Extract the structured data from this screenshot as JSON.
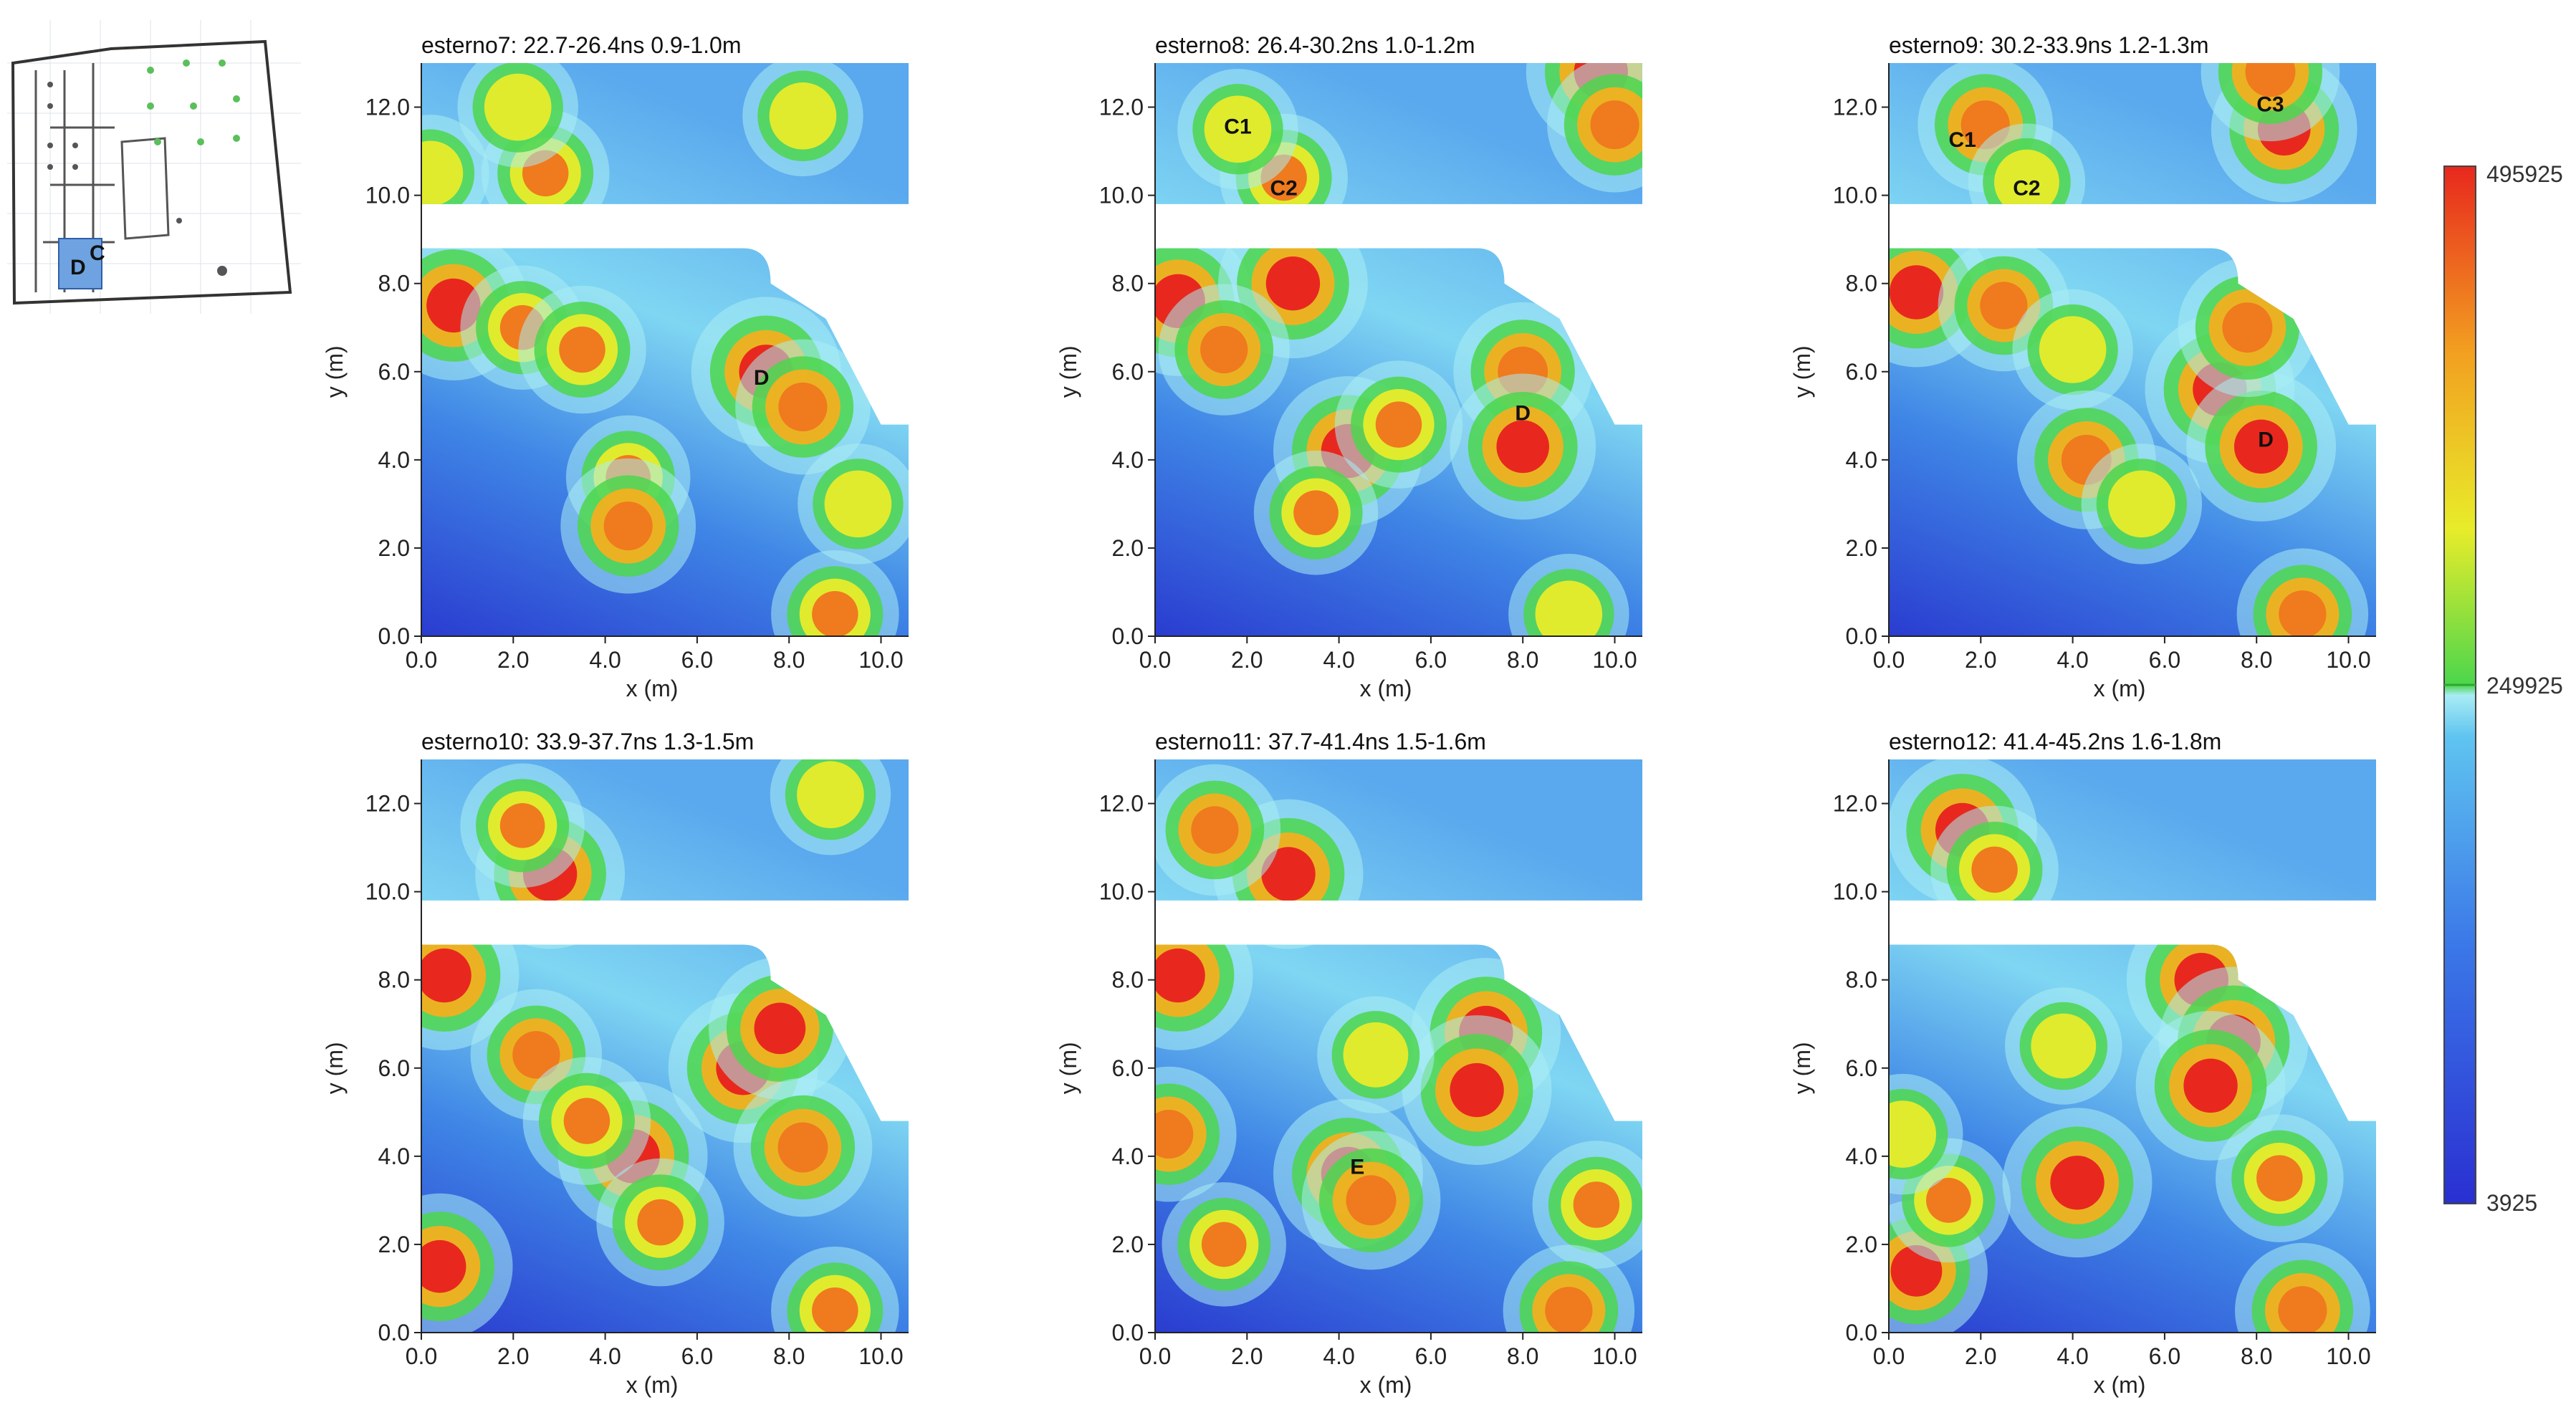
{
  "colorbar": {
    "max_label": "495925",
    "mid_label": "249925",
    "min_label": "3925",
    "colors": [
      "#2a2fd1",
      "#3b78e8",
      "#5fc4f0",
      "#a9ecf4",
      "#4cd64c",
      "#e8ec2a",
      "#f2a020",
      "#e8281e"
    ]
  },
  "site_map": {
    "labels": [
      "D",
      "C"
    ],
    "icon": "site-plan-thumbnail"
  },
  "chart_data": [
    {
      "type": "heatmap",
      "title": "esterno7:  22.7-26.4ns  0.9-1.0m",
      "xlabel": "x (m)",
      "ylabel": "y (m)",
      "xlim": [
        0,
        10.6
      ],
      "ylim": [
        0,
        13
      ],
      "xticks": [
        "0.0",
        "2.0",
        "4.0",
        "6.0",
        "8.0",
        "10.0"
      ],
      "yticks": [
        "0.0",
        "2.0",
        "4.0",
        "6.0",
        "8.0",
        "10.0",
        "12.0"
      ],
      "annotations": [
        {
          "text": "D",
          "x": 7.4,
          "y": 5.7
        }
      ],
      "hotspots": [
        {
          "x": 0.7,
          "y": 7.5,
          "v": 1.0
        },
        {
          "x": 2.2,
          "y": 7.0,
          "v": 0.65
        },
        {
          "x": 3.5,
          "y": 6.5,
          "v": 0.7
        },
        {
          "x": 7.5,
          "y": 6.0,
          "v": 1.0
        },
        {
          "x": 8.3,
          "y": 5.2,
          "v": 0.8
        },
        {
          "x": 4.5,
          "y": 3.6,
          "v": 0.65
        },
        {
          "x": 4.5,
          "y": 2.5,
          "v": 0.8
        },
        {
          "x": 9.5,
          "y": 3.0,
          "v": 0.6
        },
        {
          "x": 9.0,
          "y": 0.5,
          "v": 0.7
        },
        {
          "x": 2.7,
          "y": 10.5,
          "v": 0.7
        },
        {
          "x": 2.1,
          "y": 12.0,
          "v": 0.6
        },
        {
          "x": 8.3,
          "y": 11.8,
          "v": 0.6
        },
        {
          "x": 0.2,
          "y": 10.5,
          "v": 0.55
        }
      ]
    },
    {
      "type": "heatmap",
      "title": "esterno8:  26.4-30.2ns  1.0-1.2m",
      "xlabel": "x (m)",
      "ylabel": "y (m)",
      "xlim": [
        0,
        10.6
      ],
      "ylim": [
        0,
        13
      ],
      "xticks": [
        "0.0",
        "2.0",
        "4.0",
        "6.0",
        "8.0",
        "10.0"
      ],
      "yticks": [
        "0.0",
        "2.0",
        "4.0",
        "6.0",
        "8.0",
        "10.0",
        "12.0"
      ],
      "annotations": [
        {
          "text": "C1",
          "x": 1.8,
          "y": 11.4
        },
        {
          "text": "C2",
          "x": 2.8,
          "y": 10.0
        },
        {
          "text": "D",
          "x": 8.0,
          "y": 4.9
        }
      ],
      "hotspots": [
        {
          "x": 0.5,
          "y": 7.6,
          "v": 1.0
        },
        {
          "x": 3.0,
          "y": 8.0,
          "v": 1.0
        },
        {
          "x": 1.5,
          "y": 6.5,
          "v": 0.75
        },
        {
          "x": 4.2,
          "y": 4.2,
          "v": 1.0
        },
        {
          "x": 5.3,
          "y": 4.8,
          "v": 0.7
        },
        {
          "x": 8.0,
          "y": 6.0,
          "v": 0.85
        },
        {
          "x": 8.0,
          "y": 4.3,
          "v": 0.95
        },
        {
          "x": 3.5,
          "y": 2.8,
          "v": 0.65
        },
        {
          "x": 9.0,
          "y": 0.5,
          "v": 0.6
        },
        {
          "x": 9.7,
          "y": 12.8,
          "v": 1.0
        },
        {
          "x": 2.8,
          "y": 10.4,
          "v": 0.7
        },
        {
          "x": 1.8,
          "y": 11.5,
          "v": 0.6
        },
        {
          "x": 10.0,
          "y": 11.6,
          "v": 0.8
        }
      ]
    },
    {
      "type": "heatmap",
      "title": "esterno9:  30.2-33.9ns  1.2-1.3m",
      "xlabel": "x (m)",
      "ylabel": "y (m)",
      "xlim": [
        0,
        10.6
      ],
      "ylim": [
        0,
        13
      ],
      "xticks": [
        "0.0",
        "2.0",
        "4.0",
        "6.0",
        "8.0",
        "10.0"
      ],
      "yticks": [
        "0.0",
        "2.0",
        "4.0",
        "6.0",
        "8.0",
        "10.0",
        "12.0"
      ],
      "annotations": [
        {
          "text": "C1",
          "x": 1.6,
          "y": 11.1
        },
        {
          "text": "C2",
          "x": 3.0,
          "y": 10.0
        },
        {
          "text": "C3",
          "x": 8.3,
          "y": 11.9
        },
        {
          "text": "D",
          "x": 8.2,
          "y": 4.3
        }
      ],
      "hotspots": [
        {
          "x": 0.6,
          "y": 7.8,
          "v": 1.0
        },
        {
          "x": 2.5,
          "y": 7.5,
          "v": 0.75
        },
        {
          "x": 4.0,
          "y": 6.5,
          "v": 0.6
        },
        {
          "x": 7.2,
          "y": 5.6,
          "v": 1.0
        },
        {
          "x": 8.1,
          "y": 4.3,
          "v": 1.0
        },
        {
          "x": 7.8,
          "y": 7.0,
          "v": 0.85
        },
        {
          "x": 4.3,
          "y": 4.0,
          "v": 0.85
        },
        {
          "x": 5.5,
          "y": 3.0,
          "v": 0.6
        },
        {
          "x": 9.0,
          "y": 0.5,
          "v": 0.75
        },
        {
          "x": 2.1,
          "y": 11.6,
          "v": 0.8
        },
        {
          "x": 3.0,
          "y": 10.3,
          "v": 0.55
        },
        {
          "x": 8.6,
          "y": 11.5,
          "v": 0.95
        },
        {
          "x": 8.3,
          "y": 12.8,
          "v": 0.85
        }
      ]
    },
    {
      "type": "heatmap",
      "title": "esterno10:  33.9-37.7ns  1.3-1.5m",
      "xlabel": "x (m)",
      "ylabel": "y (m)",
      "xlim": [
        0,
        10.6
      ],
      "ylim": [
        0,
        13
      ],
      "xticks": [
        "0.0",
        "2.0",
        "4.0",
        "6.0",
        "8.0",
        "10.0"
      ],
      "yticks": [
        "0.0",
        "2.0",
        "4.0",
        "6.0",
        "8.0",
        "10.0",
        "12.0"
      ],
      "annotations": [],
      "hotspots": [
        {
          "x": 0.5,
          "y": 8.1,
          "v": 1.0
        },
        {
          "x": 2.5,
          "y": 6.3,
          "v": 0.75
        },
        {
          "x": 4.6,
          "y": 4.0,
          "v": 1.0
        },
        {
          "x": 3.6,
          "y": 4.8,
          "v": 0.7
        },
        {
          "x": 7.0,
          "y": 6.0,
          "v": 1.0
        },
        {
          "x": 7.8,
          "y": 6.9,
          "v": 0.9
        },
        {
          "x": 8.3,
          "y": 4.2,
          "v": 0.85
        },
        {
          "x": 0.4,
          "y": 1.5,
          "v": 0.95
        },
        {
          "x": 5.2,
          "y": 2.5,
          "v": 0.7
        },
        {
          "x": 9.0,
          "y": 0.5,
          "v": 0.7
        },
        {
          "x": 2.8,
          "y": 10.4,
          "v": 1.0
        },
        {
          "x": 2.2,
          "y": 11.5,
          "v": 0.65
        },
        {
          "x": 8.9,
          "y": 12.2,
          "v": 0.6
        }
      ]
    },
    {
      "type": "heatmap",
      "title": "esterno11:  37.7-41.4ns  1.5-1.6m",
      "xlabel": "x (m)",
      "ylabel": "y (m)",
      "xlim": [
        0,
        10.6
      ],
      "ylim": [
        0,
        13
      ],
      "xticks": [
        "0.0",
        "2.0",
        "4.0",
        "6.0",
        "8.0",
        "10.0"
      ],
      "yticks": [
        "0.0",
        "2.0",
        "4.0",
        "6.0",
        "8.0",
        "10.0",
        "12.0"
      ],
      "annotations": [
        {
          "text": "E",
          "x": 4.4,
          "y": 3.6
        }
      ],
      "hotspots": [
        {
          "x": 0.5,
          "y": 8.1,
          "v": 1.0
        },
        {
          "x": 0.3,
          "y": 4.5,
          "v": 0.8
        },
        {
          "x": 4.2,
          "y": 3.6,
          "v": 1.0
        },
        {
          "x": 4.7,
          "y": 3.0,
          "v": 0.85
        },
        {
          "x": 7.2,
          "y": 6.8,
          "v": 1.0
        },
        {
          "x": 7.0,
          "y": 5.5,
          "v": 1.0
        },
        {
          "x": 9.6,
          "y": 2.9,
          "v": 0.7
        },
        {
          "x": 1.5,
          "y": 2.0,
          "v": 0.65
        },
        {
          "x": 9.0,
          "y": 0.5,
          "v": 0.75
        },
        {
          "x": 2.9,
          "y": 10.4,
          "v": 1.0
        },
        {
          "x": 1.3,
          "y": 11.4,
          "v": 0.75
        },
        {
          "x": 4.8,
          "y": 6.3,
          "v": 0.55
        }
      ]
    },
    {
      "type": "heatmap",
      "title": "esterno12:  41.4-45.2ns  1.6-1.8m",
      "xlabel": "x (m)",
      "ylabel": "y (m)",
      "xlim": [
        0,
        10.6
      ],
      "ylim": [
        0,
        13
      ],
      "xticks": [
        "0.0",
        "2.0",
        "4.0",
        "6.0",
        "8.0",
        "10.0"
      ],
      "yticks": [
        "0.0",
        "2.0",
        "4.0",
        "6.0",
        "8.0",
        "10.0",
        "12.0"
      ],
      "annotations": [],
      "hotspots": [
        {
          "x": 6.8,
          "y": 8.0,
          "v": 1.0
        },
        {
          "x": 7.5,
          "y": 6.6,
          "v": 1.0
        },
        {
          "x": 7.0,
          "y": 5.6,
          "v": 1.0
        },
        {
          "x": 4.1,
          "y": 3.4,
          "v": 1.0
        },
        {
          "x": 0.6,
          "y": 1.4,
          "v": 0.9
        },
        {
          "x": 9.0,
          "y": 0.5,
          "v": 0.8
        },
        {
          "x": 8.5,
          "y": 3.5,
          "v": 0.7
        },
        {
          "x": 1.3,
          "y": 3.0,
          "v": 0.65
        },
        {
          "x": 1.6,
          "y": 11.4,
          "v": 1.0
        },
        {
          "x": 2.3,
          "y": 10.5,
          "v": 0.7
        },
        {
          "x": 0.3,
          "y": 4.5,
          "v": 0.6
        },
        {
          "x": 3.8,
          "y": 6.5,
          "v": 0.55
        }
      ]
    }
  ]
}
